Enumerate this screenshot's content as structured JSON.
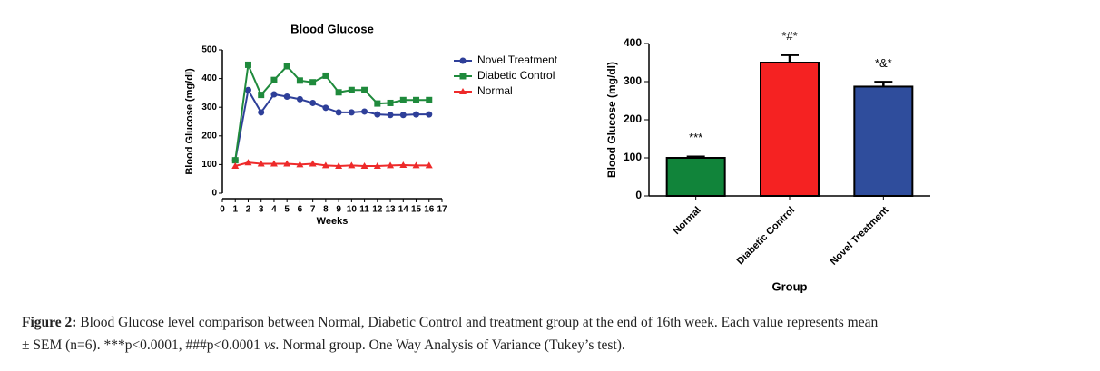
{
  "chart_data": [
    {
      "type": "line",
      "title": "Blood Glucose",
      "x_label": "Weeks",
      "y_label": "Blood Glucose (mg/dl)",
      "x": [
        1,
        2,
        3,
        4,
        5,
        6,
        7,
        8,
        9,
        10,
        11,
        12,
        13,
        14,
        15,
        16
      ],
      "series": [
        {
          "name": "Novel Treatment",
          "color": "#2e3f99",
          "marker": "circle",
          "values": [
            115,
            360,
            282,
            345,
            337,
            328,
            315,
            298,
            282,
            282,
            285,
            275,
            273,
            273,
            275,
            275
          ]
        },
        {
          "name": "Diabetic Control",
          "color": "#1f8a3c",
          "marker": "square",
          "values": [
            115,
            448,
            343,
            395,
            443,
            393,
            387,
            410,
            352,
            360,
            360,
            313,
            315,
            325,
            325,
            325
          ]
        },
        {
          "name": "Normal",
          "color": "#ee2a2a",
          "marker": "triangle",
          "values": [
            95,
            107,
            103,
            103,
            103,
            100,
            103,
            97,
            95,
            97,
            95,
            95,
            97,
            98,
            97,
            97
          ]
        }
      ],
      "xlim": [
        0,
        17
      ],
      "xticks": [
        0,
        1,
        2,
        3,
        4,
        5,
        6,
        7,
        8,
        9,
        10,
        11,
        12,
        13,
        14,
        15,
        16,
        17
      ],
      "ylim": [
        0,
        500
      ],
      "yticks": [
        0,
        100,
        200,
        300,
        400,
        500
      ],
      "legend": "right"
    },
    {
      "type": "bar",
      "x_label": "Group",
      "y_label": "Blood Glucose (mg/dl)",
      "categories": [
        "Normal",
        "Diabetic Control",
        "Novel Treatment"
      ],
      "values": [
        100,
        350,
        287
      ],
      "errors": [
        3,
        20,
        12
      ],
      "colors": [
        "#11843a",
        "#f52222",
        "#2f4d9c"
      ],
      "annotations": [
        "***",
        "*#*",
        "*&*"
      ],
      "ylim": [
        0,
        400
      ],
      "yticks": [
        0,
        100,
        200,
        300,
        400
      ]
    }
  ],
  "caption": {
    "label": "Figure 2:",
    "line1": "Blood Glucose level comparison between Normal, Diabetic Control and treatment group at the end of 16th week. Each value represents mean",
    "line2a": "± SEM (n=6). ***p<0.0001, ###p<0.0001",
    "vs": "vs.",
    "line2b": "Normal group. One Way Analysis of Variance (Tukey’s test)."
  }
}
